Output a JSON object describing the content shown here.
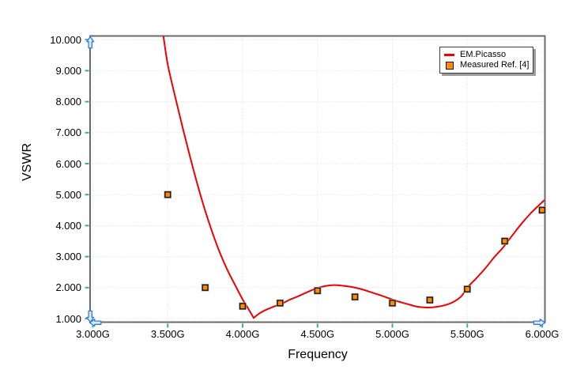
{
  "window": {
    "background": "#ffffff"
  },
  "chart_data": {
    "type": "line+scatter",
    "title": "",
    "x_axis": {
      "label": "Frequency",
      "min": 3.0,
      "max": 6.0,
      "unit": "GHz",
      "tick_values": [
        3.0,
        3.5,
        4.0,
        4.5,
        5.0,
        5.5,
        6.0
      ],
      "tick_labels": [
        "3.000G",
        "3.500G",
        "4.000G",
        "4.500G",
        "5.000G",
        "5.500G",
        "6.000G"
      ]
    },
    "y_axis": {
      "label": "VSWR",
      "min": 1.0,
      "max": 10.0,
      "tick_values": [
        1,
        2,
        3,
        4,
        5,
        6,
        7,
        8,
        9,
        10
      ],
      "tick_labels": [
        "1.000",
        "2.000",
        "3.000",
        "4.000",
        "5.000",
        "6.000",
        "7.000",
        "8.000",
        "9.000",
        "10.000"
      ]
    },
    "grid": {
      "style": "dotted",
      "horizontal": true,
      "vertical": true
    },
    "legend": {
      "position": "top-right",
      "entries": [
        "EM.Picasso",
        "Measured Ref. [4]"
      ]
    },
    "series": [
      {
        "name": "EM.Picasso",
        "type": "line",
        "color": "#ee0000",
        "width": 2,
        "points": [
          [
            3.44,
            11.0
          ],
          [
            3.47,
            10.15
          ],
          [
            3.5,
            9.2
          ],
          [
            3.55,
            8.15
          ],
          [
            3.6,
            7.15
          ],
          [
            3.65,
            6.2
          ],
          [
            3.7,
            5.3
          ],
          [
            3.75,
            4.48
          ],
          [
            3.8,
            3.75
          ],
          [
            3.85,
            3.1
          ],
          [
            3.9,
            2.55
          ],
          [
            3.95,
            2.08
          ],
          [
            4.0,
            1.62
          ],
          [
            4.04,
            1.3
          ],
          [
            4.074,
            1.02
          ],
          [
            4.074,
            1.02
          ],
          [
            4.11,
            1.16
          ],
          [
            4.15,
            1.27
          ],
          [
            4.21,
            1.39
          ],
          [
            4.27,
            1.5
          ],
          [
            4.31,
            1.6
          ],
          [
            4.37,
            1.72
          ],
          [
            4.43,
            1.85
          ],
          [
            4.49,
            1.97
          ],
          [
            4.55,
            2.05
          ],
          [
            4.61,
            2.08
          ],
          [
            4.67,
            2.06
          ],
          [
            4.73,
            2.02
          ],
          [
            4.8,
            1.94
          ],
          [
            4.87,
            1.83
          ],
          [
            4.94,
            1.72
          ],
          [
            5.02,
            1.58
          ],
          [
            5.1,
            1.47
          ],
          [
            5.16,
            1.39
          ],
          [
            5.22,
            1.36
          ],
          [
            5.28,
            1.37
          ],
          [
            5.34,
            1.42
          ],
          [
            5.4,
            1.52
          ],
          [
            5.46,
            1.72
          ],
          [
            5.5,
            2.0
          ],
          [
            5.56,
            2.3
          ],
          [
            5.62,
            2.62
          ],
          [
            5.68,
            2.98
          ],
          [
            5.74,
            3.3
          ],
          [
            5.8,
            3.68
          ],
          [
            5.86,
            4.05
          ],
          [
            5.92,
            4.38
          ],
          [
            5.97,
            4.62
          ],
          [
            6.01,
            4.8
          ],
          [
            6.03,
            4.88
          ]
        ]
      },
      {
        "name": "Measured Ref. [4]",
        "type": "scatter",
        "marker": "square",
        "fill": "#ff8c00",
        "border": "#1c1206",
        "points": [
          [
            3.5,
            5.0
          ],
          [
            3.75,
            2.0
          ],
          [
            4.0,
            1.4
          ],
          [
            4.25,
            1.5
          ],
          [
            4.5,
            1.9
          ],
          [
            4.75,
            1.7
          ],
          [
            5.0,
            1.5
          ],
          [
            5.25,
            1.6
          ],
          [
            5.5,
            1.95
          ],
          [
            5.75,
            3.5
          ],
          [
            6.0,
            4.5
          ]
        ]
      }
    ]
  },
  "legend": {
    "entry_line": "EM.Picasso",
    "entry_scatter": "Measured Ref. [4]"
  },
  "axis_handles": {
    "positions": [
      "y-max",
      "y-min",
      "x-min",
      "x-max"
    ],
    "stroke": "#2e7ce0",
    "fill": "#ddeafa"
  },
  "colors": {
    "frame": "#6a6a6a",
    "grid": "#e2e2e2",
    "tick": "#3fa9a9",
    "curve": "#ee0000",
    "marker_fill": "#ff8c00",
    "marker_border": "#1c1206",
    "marker_halo": "#aab2ba",
    "legend_border": "#3d3d3d",
    "legend_shadow": "#9c9c9c",
    "text": "#000000"
  }
}
